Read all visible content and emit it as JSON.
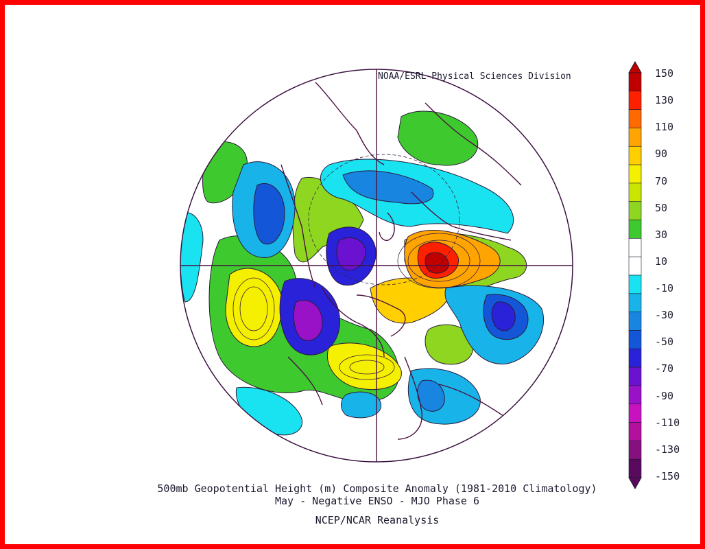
{
  "credit": "NOAA/ESRL Physical Sciences Division",
  "caption": {
    "line1": "500mb Geopotential Height (m) Composite Anomaly (1981-2010 Climatology)",
    "line2": "May - Negative ENSO - MJO Phase 6",
    "line3": "NCEP/NCAR Reanalysis"
  },
  "colorbar": {
    "labels": [
      "150",
      "130",
      "110",
      "90",
      "70",
      "50",
      "30",
      "10",
      "-10",
      "-30",
      "-50",
      "-70",
      "-90",
      "-110",
      "-130",
      "-150"
    ],
    "colors": [
      "#c00000",
      "#ff2000",
      "#ff6a00",
      "#ffa400",
      "#ffcf00",
      "#f5ef00",
      "#c9e600",
      "#8ed61f",
      "#3ec92e",
      "#ffffff",
      "#ffffff",
      "#19e3f0",
      "#18b3e8",
      "#1885e0",
      "#1456d8",
      "#2a22d8",
      "#6a12d0",
      "#9a12c8",
      "#c812c0",
      "#b4109e",
      "#86107e",
      "#5a0a5e"
    ],
    "frame_color": "#ff0000"
  }
}
